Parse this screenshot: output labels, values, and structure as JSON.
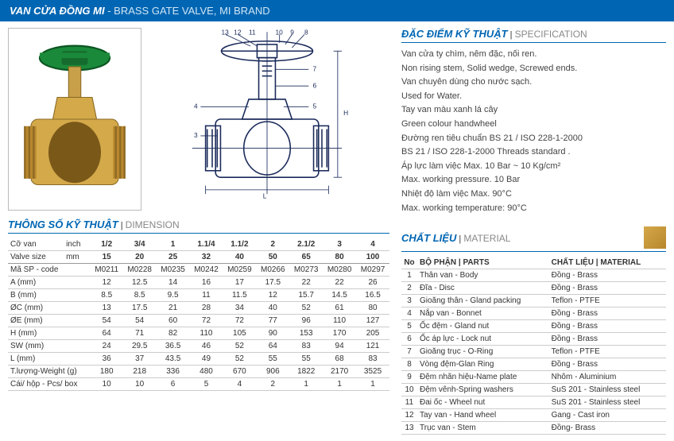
{
  "header": {
    "title_vn": "VAN CỬA ĐỒNG MI",
    "title_en": " - BRASS GATE VALVE, MI BRAND"
  },
  "dimension_section": {
    "title_vn": "THÔNG SỐ KỸ THUẬT",
    "title_en": "DIMENSION"
  },
  "dimension_table": {
    "valve_size_label_vn": "Cỡ van",
    "valve_size_label_en": "Valve size",
    "inch_label": "inch",
    "mm_label": "mm",
    "inches": [
      "1/2",
      "3/4",
      "1",
      "1.1/4",
      "1.1/2",
      "2",
      "2.1/2",
      "3",
      "4"
    ],
    "mm": [
      "15",
      "20",
      "25",
      "32",
      "40",
      "50",
      "65",
      "80",
      "100"
    ],
    "rows": [
      {
        "label": "Mã SP - code",
        "vals": [
          "M0211",
          "M0228",
          "M0235",
          "M0242",
          "M0259",
          "M0266",
          "M0273",
          "M0280",
          "M0297"
        ]
      },
      {
        "label": "A (mm)",
        "vals": [
          "12",
          "12.5",
          "14",
          "16",
          "17",
          "17.5",
          "22",
          "22",
          "26"
        ]
      },
      {
        "label": "B (mm)",
        "vals": [
          "8.5",
          "8.5",
          "9.5",
          "11",
          "11.5",
          "12",
          "15.7",
          "14.5",
          "16.5"
        ]
      },
      {
        "label": "ØC (mm)",
        "vals": [
          "13",
          "17.5",
          "21",
          "28",
          "34",
          "40",
          "52",
          "61",
          "80"
        ]
      },
      {
        "label": "ØE (mm)",
        "vals": [
          "54",
          "54",
          "60",
          "72",
          "72",
          "77",
          "96",
          "110",
          "127"
        ]
      },
      {
        "label": "H (mm)",
        "vals": [
          "64",
          "71",
          "82",
          "110",
          "105",
          "90",
          "153",
          "170",
          "205"
        ]
      },
      {
        "label": "SW (mm)",
        "vals": [
          "24",
          "29.5",
          "36.5",
          "46",
          "52",
          "64",
          "83",
          "94",
          "121"
        ]
      },
      {
        "label": "L (mm)",
        "vals": [
          "36",
          "37",
          "43.5",
          "49",
          "52",
          "55",
          "55",
          "68",
          "83"
        ]
      },
      {
        "label": "T.lượng-Weight (g)",
        "vals": [
          "180",
          "218",
          "336",
          "480",
          "670",
          "906",
          "1822",
          "2170",
          "3525"
        ]
      },
      {
        "label": "Cái/ hộp - Pcs/ box",
        "vals": [
          "10",
          "10",
          "6",
          "5",
          "4",
          "2",
          "1",
          "1",
          "1"
        ]
      }
    ]
  },
  "spec_section": {
    "title_vn": "ĐẶC ĐIỂM KỸ THUẬT",
    "title_en": "SPECIFICATION",
    "lines": [
      "Van cửa ty chìm, nêm đặc, nối ren.",
      "Non rising stem, Solid wedge, Screwed ends.",
      "Van chuyên dùng cho nước sạch.",
      "Used for Water.",
      "Tay van màu xanh lá cây",
      "Green colour handwheel",
      "Đường ren tiêu chuẩn BS 21 / ISO 228-1-2000",
      "BS 21 / ISO 228-1-2000 Threads standard .",
      "Áp lực làm việc Max. 10 Bar ~ 10 Kg/cm²",
      "Max. working pressure. 10 Bar",
      "Nhiệt độ làm việc Max. 90°C",
      "Max. working temperature: 90°C"
    ]
  },
  "material_section": {
    "title_vn": "CHẤT LIỆU",
    "title_en": "MATERIAL",
    "header_no": "No",
    "header_parts_vn": "BỘ PHẬN",
    "header_parts_en": "PARTS",
    "header_mat_vn": "CHẤT LIỆU",
    "header_mat_en": "MATERIAL",
    "rows": [
      {
        "no": "1",
        "part": "Thân van - Body",
        "mat": "Đồng - Brass"
      },
      {
        "no": "2",
        "part": "Đĩa - Disc",
        "mat": "Đồng - Brass"
      },
      {
        "no": "3",
        "part": "Gioăng thân - Gland packing",
        "mat": "Teflon - PTFE"
      },
      {
        "no": "4",
        "part": "Nắp van - Bonnet",
        "mat": "Đồng - Brass"
      },
      {
        "no": "5",
        "part": "Ốc đệm - Gland nut",
        "mat": "Đồng - Brass"
      },
      {
        "no": "6",
        "part": "Ốc áp lực - Lock nut",
        "mat": "Đồng - Brass"
      },
      {
        "no": "7",
        "part": "Gioăng trục - O-Ring",
        "mat": "Teflon - PTFE"
      },
      {
        "no": "8",
        "part": "Vòng đệm-Glan Ring",
        "mat": "Đồng - Brass"
      },
      {
        "no": "9",
        "part": "Đệm nhãn hiệu-Name plate",
        "mat": "Nhôm - Aluminium"
      },
      {
        "no": "10",
        "part": "Đệm vênh-Spring washers",
        "mat": "SuS 201 - Stainless steel"
      },
      {
        "no": "11",
        "part": "Đai ốc - Wheel nut",
        "mat": "SuS 201 - Stainless steel"
      },
      {
        "no": "12",
        "part": "Tay van - Hand wheel",
        "mat": "Gang - Cast iron"
      },
      {
        "no": "13",
        "part": "Trục van - Stem",
        "mat": "Đồng- Brass"
      }
    ]
  },
  "colors": {
    "primary": "#0066b3",
    "handwheel": "#1a8a3a",
    "brass1": "#d4a94a",
    "brass2": "#b8862d"
  }
}
